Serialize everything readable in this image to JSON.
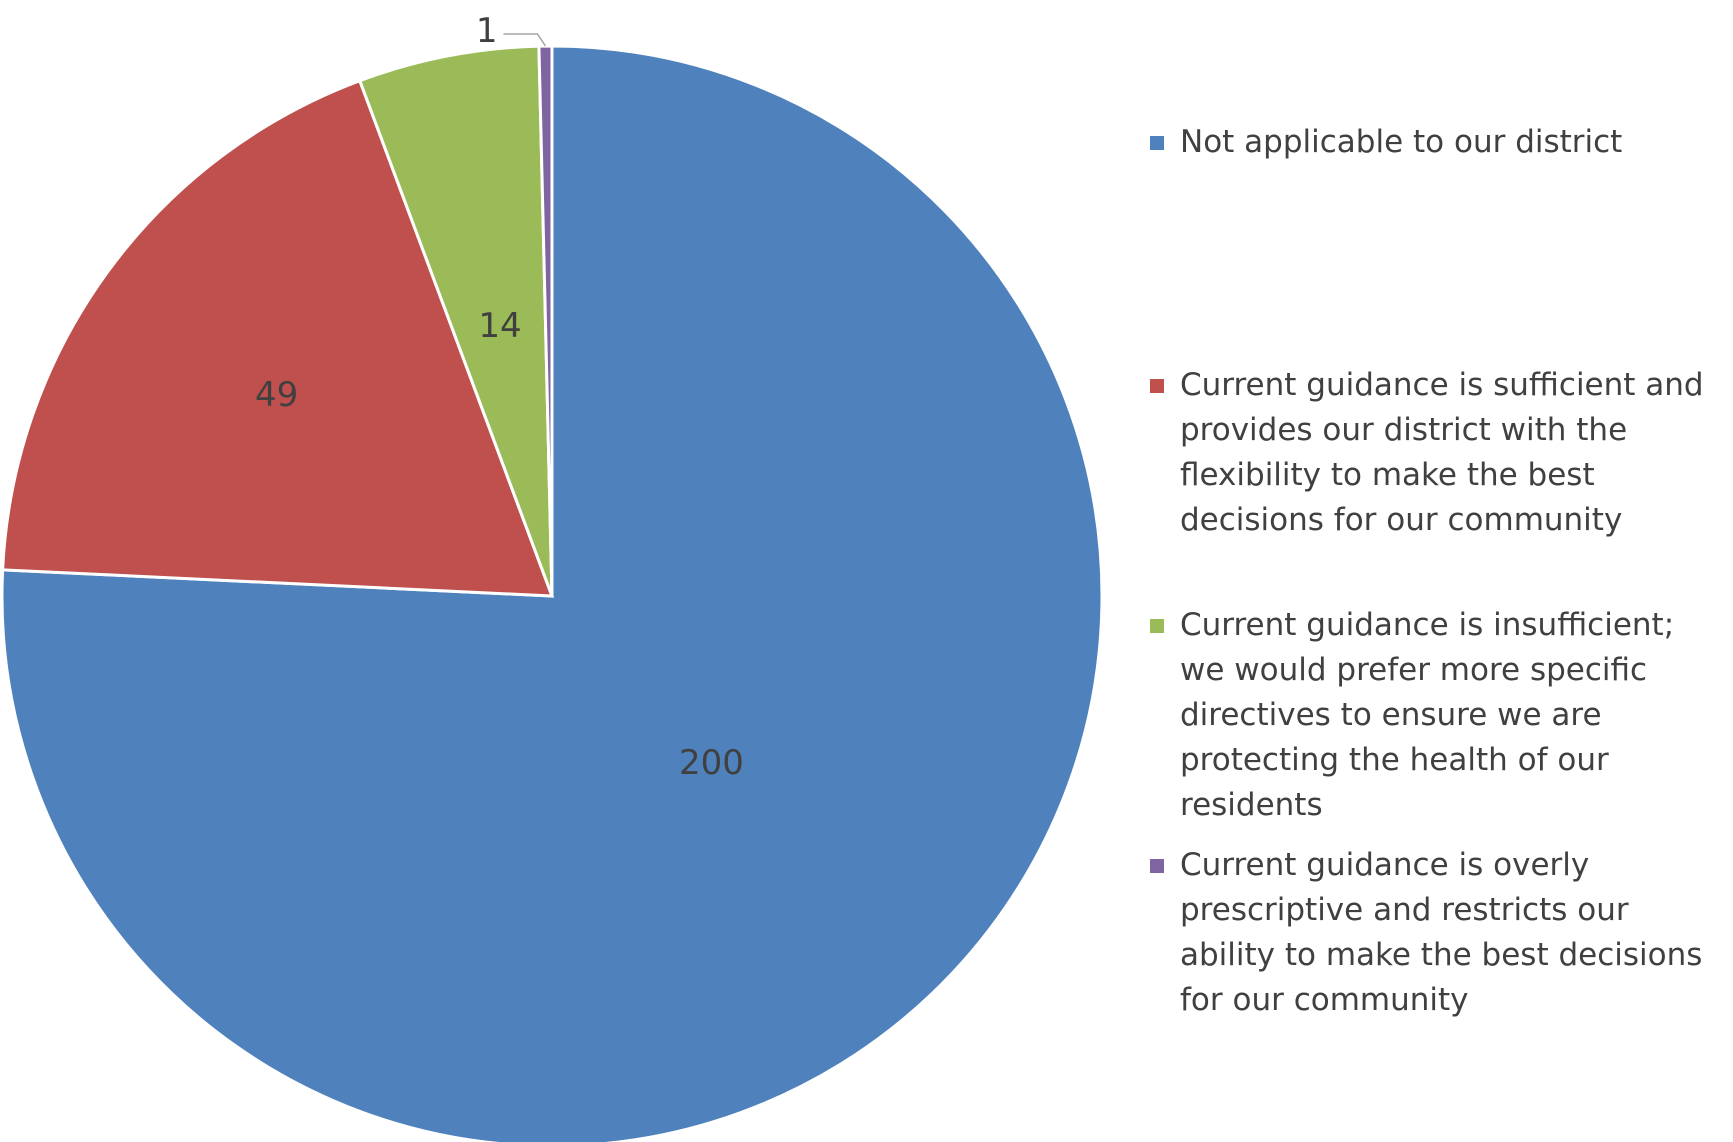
{
  "chart_data": {
    "type": "pie",
    "title": "",
    "categories": [
      "Not applicable to our district",
      "Current guidance is sufficient and provides our district with the flexibility to make the best decisions for our community",
      "Current guidance is insufficient; we would prefer more specific directives to ensure we are protecting the health of our residents",
      "Current guidance is overly prescriptive and restricts our ability to make the best decisions for our community"
    ],
    "values": [
      200,
      49,
      14,
      1
    ],
    "data_labels": [
      "200",
      "49",
      "14",
      "1"
    ],
    "colors": [
      "#4f81bd",
      "#c0504d",
      "#9bbb59",
      "#8064a2"
    ],
    "start_angle_deg": 0,
    "direction": "clockwise",
    "legend_position": "right"
  },
  "legend": {
    "items": [
      {
        "label": "Not applicable to our district",
        "color": "#4f81bd"
      },
      {
        "label": "Current guidance is sufficient and provides our district with the flexibility to make the best decisions for our community",
        "color": "#c0504d"
      },
      {
        "label": "Current guidance is insufficient; we would prefer more specific directives to ensure we are protecting the health of our residents",
        "color": "#9bbb59"
      },
      {
        "label": "Current guidance is overly prescriptive and restricts our ability to make the best decisions for our community",
        "color": "#8064a2"
      }
    ]
  }
}
